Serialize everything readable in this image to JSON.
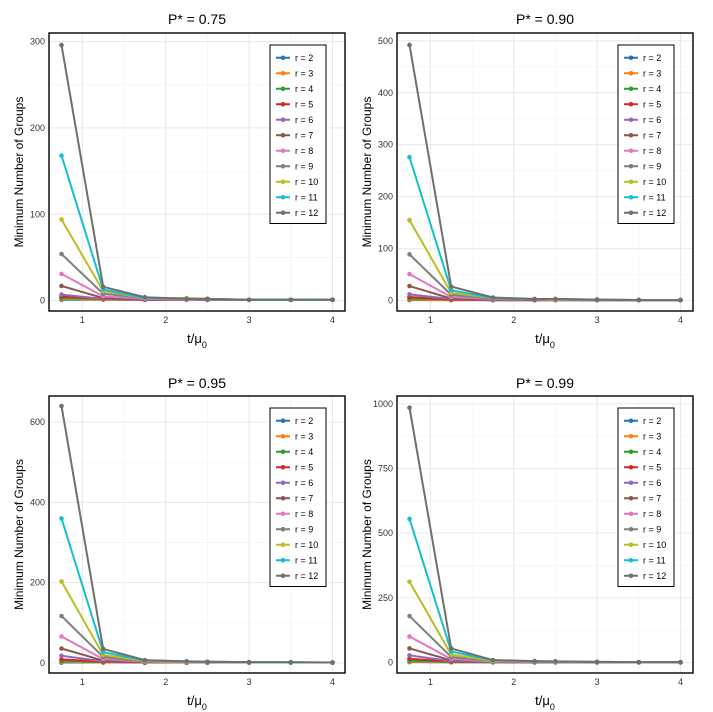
{
  "chart_data": [
    {
      "type": "line",
      "title": "P* = 0.75",
      "xlabel": "t/μ0",
      "ylabel": "Minimum Number of Groups",
      "xlim": [
        0.6,
        4.15
      ],
      "ylim": [
        -12,
        310
      ],
      "xticks": [
        1,
        2,
        3,
        4
      ],
      "yticks": [
        0,
        100,
        200,
        300
      ],
      "legend_position": "top-right",
      "x": [
        0.75,
        1.25,
        1.75,
        2.25,
        2.5,
        3.0,
        3.5,
        4.0
      ],
      "series": [
        {
          "name": "r = 2",
          "color": "#1f77b4",
          "values": [
            1,
            1,
            1,
            1,
            1,
            1,
            1,
            1
          ]
        },
        {
          "name": "r = 3",
          "color": "#ff7f0e",
          "values": [
            2,
            1,
            1,
            1,
            1,
            1,
            1,
            1
          ]
        },
        {
          "name": "r = 4",
          "color": "#2ca02c",
          "values": [
            3,
            2,
            1,
            1,
            1,
            1,
            1,
            1
          ]
        },
        {
          "name": "r = 5",
          "color": "#d62728",
          "values": [
            5,
            2,
            1,
            1,
            1,
            1,
            1,
            1
          ]
        },
        {
          "name": "r = 6",
          "color": "#9467bd",
          "values": [
            7,
            2,
            1,
            1,
            1,
            1,
            1,
            1
          ]
        },
        {
          "name": "r = 7",
          "color": "#8c564b",
          "values": [
            17,
            3,
            1,
            1,
            1,
            1,
            1,
            1
          ]
        },
        {
          "name": "r = 8",
          "color": "#e377c2",
          "values": [
            31,
            5,
            2,
            1,
            1,
            1,
            1,
            1
          ]
        },
        {
          "name": "r = 9",
          "color": "#7f7f7f",
          "values": [
            54,
            8,
            3,
            2,
            1,
            1,
            1,
            1
          ]
        },
        {
          "name": "r = 10",
          "color": "#bcbd22",
          "values": [
            94,
            11,
            3,
            3,
            2,
            1,
            1,
            1
          ]
        },
        {
          "name": "r = 11",
          "color": "#17becf",
          "values": [
            168,
            13,
            3,
            2,
            2,
            1,
            1,
            1
          ]
        },
        {
          "name": "r = 12",
          "color": "#6f6f6f",
          "values": [
            296,
            16,
            4,
            2,
            2,
            1,
            1,
            1
          ]
        }
      ]
    },
    {
      "type": "line",
      "title": "P* = 0.90",
      "xlabel": "t/μ0",
      "ylabel": "Minimum Number of Groups",
      "xlim": [
        0.6,
        4.15
      ],
      "ylim": [
        -20,
        515
      ],
      "xticks": [
        1,
        2,
        3,
        4
      ],
      "yticks": [
        0,
        100,
        200,
        300,
        400,
        500
      ],
      "legend_position": "top-right",
      "x": [
        0.75,
        1.25,
        1.75,
        2.25,
        2.5,
        3.0,
        3.5,
        4.0
      ],
      "series": [
        {
          "name": "r = 2",
          "color": "#1f77b4",
          "values": [
            1,
            1,
            1,
            1,
            1,
            1,
            1,
            1
          ]
        },
        {
          "name": "r = 3",
          "color": "#ff7f0e",
          "values": [
            2,
            1,
            1,
            1,
            1,
            1,
            1,
            1
          ]
        },
        {
          "name": "r = 4",
          "color": "#2ca02c",
          "values": [
            4,
            2,
            1,
            1,
            1,
            1,
            1,
            1
          ]
        },
        {
          "name": "r = 5",
          "color": "#d62728",
          "values": [
            7,
            2,
            1,
            1,
            1,
            1,
            1,
            1
          ]
        },
        {
          "name": "r = 6",
          "color": "#9467bd",
          "values": [
            12,
            3,
            1,
            1,
            1,
            1,
            1,
            1
          ]
        },
        {
          "name": "r = 7",
          "color": "#8c564b",
          "values": [
            28,
            4,
            2,
            1,
            1,
            1,
            1,
            1
          ]
        },
        {
          "name": "r = 8",
          "color": "#e377c2",
          "values": [
            51,
            7,
            3,
            2,
            1,
            1,
            1,
            1
          ]
        },
        {
          "name": "r = 9",
          "color": "#7f7f7f",
          "values": [
            89,
            11,
            4,
            2,
            2,
            1,
            1,
            1
          ]
        },
        {
          "name": "r = 10",
          "color": "#bcbd22",
          "values": [
            155,
            15,
            5,
            3,
            2,
            2,
            1,
            1
          ]
        },
        {
          "name": "r = 11",
          "color": "#17becf",
          "values": [
            276,
            20,
            5,
            3,
            3,
            2,
            1,
            1
          ]
        },
        {
          "name": "r = 12",
          "color": "#6f6f6f",
          "values": [
            492,
            27,
            6,
            3,
            3,
            2,
            1,
            1
          ]
        }
      ]
    },
    {
      "type": "line",
      "title": "P* = 0.95",
      "xlabel": "t/μ0",
      "ylabel": "Minimum Number of Groups",
      "xlim": [
        0.6,
        4.15
      ],
      "ylim": [
        -25,
        665
      ],
      "xticks": [
        1,
        2,
        3,
        4
      ],
      "yticks": [
        0,
        200,
        400,
        600
      ],
      "legend_position": "top-right",
      "x": [
        0.75,
        1.25,
        1.75,
        2.25,
        2.5,
        3.0,
        3.5,
        4.0
      ],
      "series": [
        {
          "name": "r = 2",
          "color": "#1f77b4",
          "values": [
            1,
            1,
            1,
            1,
            1,
            1,
            1,
            1
          ]
        },
        {
          "name": "r = 3",
          "color": "#ff7f0e",
          "values": [
            3,
            1,
            1,
            1,
            1,
            1,
            1,
            1
          ]
        },
        {
          "name": "r = 4",
          "color": "#2ca02c",
          "values": [
            5,
            2,
            1,
            1,
            1,
            1,
            1,
            1
          ]
        },
        {
          "name": "r = 5",
          "color": "#d62728",
          "values": [
            9,
            3,
            1,
            1,
            1,
            1,
            1,
            1
          ]
        },
        {
          "name": "r = 6",
          "color": "#9467bd",
          "values": [
            18,
            4,
            2,
            1,
            1,
            1,
            1,
            1
          ]
        },
        {
          "name": "r = 7",
          "color": "#8c564b",
          "values": [
            36,
            6,
            2,
            1,
            1,
            1,
            1,
            1
          ]
        },
        {
          "name": "r = 8",
          "color": "#e377c2",
          "values": [
            66,
            10,
            3,
            2,
            2,
            1,
            1,
            1
          ]
        },
        {
          "name": "r = 9",
          "color": "#7f7f7f",
          "values": [
            117,
            15,
            4,
            3,
            2,
            1,
            1,
            1
          ]
        },
        {
          "name": "r = 10",
          "color": "#bcbd22",
          "values": [
            203,
            20,
            5,
            3,
            3,
            2,
            1,
            1
          ]
        },
        {
          "name": "r = 11",
          "color": "#17becf",
          "values": [
            360,
            27,
            6,
            4,
            3,
            2,
            1,
            1
          ]
        },
        {
          "name": "r = 12",
          "color": "#6f6f6f",
          "values": [
            640,
            35,
            7,
            4,
            3,
            2,
            2,
            1
          ]
        }
      ]
    },
    {
      "type": "line",
      "title": "P* = 0.99",
      "xlabel": "t/μ0",
      "ylabel": "Minimum Number of Groups",
      "xlim": [
        0.6,
        4.15
      ],
      "ylim": [
        -40,
        1030
      ],
      "xticks": [
        1,
        2,
        3,
        4
      ],
      "yticks": [
        0,
        250,
        500,
        750,
        1000
      ],
      "legend_position": "top-right",
      "x": [
        0.75,
        1.25,
        1.75,
        2.25,
        2.5,
        3.0,
        3.5,
        4.0
      ],
      "series": [
        {
          "name": "r = 2",
          "color": "#1f77b4",
          "values": [
            2,
            1,
            1,
            1,
            1,
            1,
            1,
            1
          ]
        },
        {
          "name": "r = 3",
          "color": "#ff7f0e",
          "values": [
            4,
            2,
            1,
            1,
            1,
            1,
            1,
            1
          ]
        },
        {
          "name": "r = 4",
          "color": "#2ca02c",
          "values": [
            8,
            3,
            1,
            1,
            1,
            1,
            1,
            1
          ]
        },
        {
          "name": "r = 5",
          "color": "#d62728",
          "values": [
            15,
            4,
            2,
            1,
            1,
            1,
            1,
            1
          ]
        },
        {
          "name": "r = 6",
          "color": "#9467bd",
          "values": [
            28,
            6,
            2,
            2,
            1,
            1,
            1,
            1
          ]
        },
        {
          "name": "r = 7",
          "color": "#8c564b",
          "values": [
            55,
            9,
            3,
            2,
            2,
            1,
            1,
            1
          ]
        },
        {
          "name": "r = 8",
          "color": "#e377c2",
          "values": [
            101,
            14,
            4,
            3,
            2,
            2,
            1,
            1
          ]
        },
        {
          "name": "r = 9",
          "color": "#7f7f7f",
          "values": [
            180,
            22,
            6,
            4,
            3,
            2,
            2,
            1
          ]
        },
        {
          "name": "r = 10",
          "color": "#bcbd22",
          "values": [
            313,
            31,
            7,
            5,
            4,
            3,
            2,
            2
          ]
        },
        {
          "name": "r = 11",
          "color": "#17becf",
          "values": [
            555,
            43,
            9,
            5,
            4,
            3,
            2,
            2
          ]
        },
        {
          "name": "r = 12",
          "color": "#6f6f6f",
          "values": [
            985,
            55,
            10,
            6,
            5,
            3,
            2,
            2
          ]
        }
      ]
    }
  ]
}
